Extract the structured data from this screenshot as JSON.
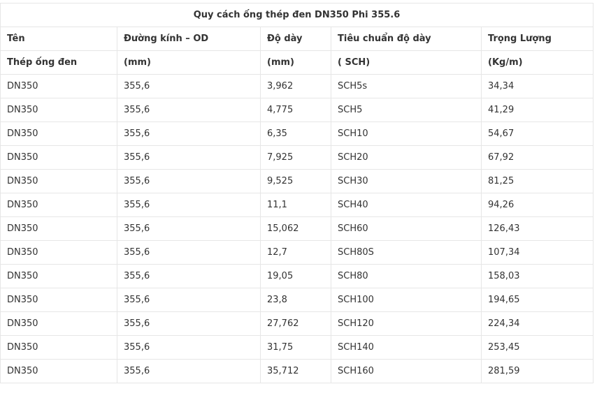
{
  "table": {
    "title": "Quy cách ống thép đen DN350 Phi 355.6",
    "header": [
      [
        "Tên",
        "Đường kính – OD",
        "Độ dày",
        "Tiêu chuẩn độ dày",
        "Trọng Lượng"
      ],
      [
        "Thép ống đen",
        "(mm)",
        "(mm)",
        "( SCH)",
        "(Kg/m)"
      ]
    ],
    "rows": [
      [
        "DN350",
        "355,6",
        "3,962",
        "SCH5s",
        "34,34"
      ],
      [
        "DN350",
        "355,6",
        "4,775",
        "SCH5",
        "41,29"
      ],
      [
        "DN350",
        "355,6",
        "6,35",
        "SCH10",
        "54,67"
      ],
      [
        "DN350",
        "355,6",
        "7,925",
        "SCH20",
        "67,92"
      ],
      [
        "DN350",
        "355,6",
        "9,525",
        "SCH30",
        "81,25"
      ],
      [
        "DN350",
        "355,6",
        "11,1",
        "SCH40",
        "94,26"
      ],
      [
        "DN350",
        "355,6",
        "15,062",
        "SCH60",
        "126,43"
      ],
      [
        "DN350",
        "355,6",
        "12,7",
        "SCH80S",
        "107,34"
      ],
      [
        "DN350",
        "355,6",
        "19,05",
        "SCH80",
        "158,03"
      ],
      [
        "DN350",
        "355,6",
        "23,8",
        "SCH100",
        "194,65"
      ],
      [
        "DN350",
        "355,6",
        "27,762",
        "SCH120",
        "224,34"
      ],
      [
        "DN350",
        "355,6",
        "31,75",
        "SCH140",
        "253,45"
      ],
      [
        "DN350",
        "355,6",
        "35,712",
        "SCH160",
        "281,59"
      ]
    ]
  }
}
